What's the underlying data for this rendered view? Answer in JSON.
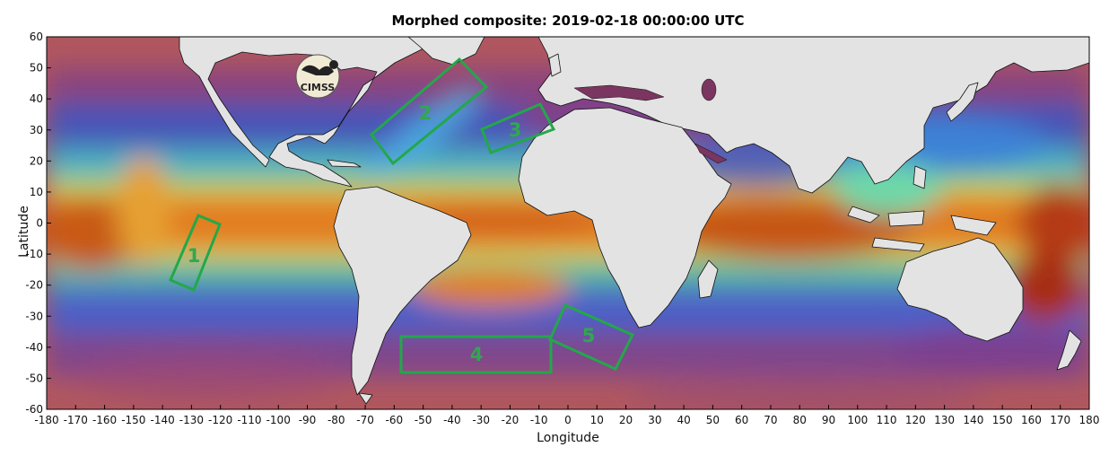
{
  "title": "Morphed composite: 2019-02-18 00:00:00 UTC",
  "xlabel": "Longitude",
  "ylabel": "Latitude",
  "logo_text": "CIMSS",
  "x_ticks": [
    -180,
    -170,
    -160,
    -150,
    -140,
    -130,
    -120,
    -110,
    -100,
    -90,
    -80,
    -70,
    -60,
    -50,
    -40,
    -30,
    -20,
    -10,
    0,
    10,
    20,
    30,
    40,
    50,
    60,
    70,
    80,
    90,
    100,
    110,
    120,
    130,
    140,
    150,
    160,
    170,
    180
  ],
  "y_ticks": [
    60,
    50,
    40,
    30,
    20,
    10,
    0,
    -10,
    -20,
    -30,
    -40,
    -50,
    -60
  ],
  "colors": {
    "land": "#e3e3e3",
    "box": "#22a84a"
  },
  "boxes": [
    {
      "label": "1"
    },
    {
      "label": "2"
    },
    {
      "label": "3"
    },
    {
      "label": "4"
    },
    {
      "label": "5"
    }
  ]
}
